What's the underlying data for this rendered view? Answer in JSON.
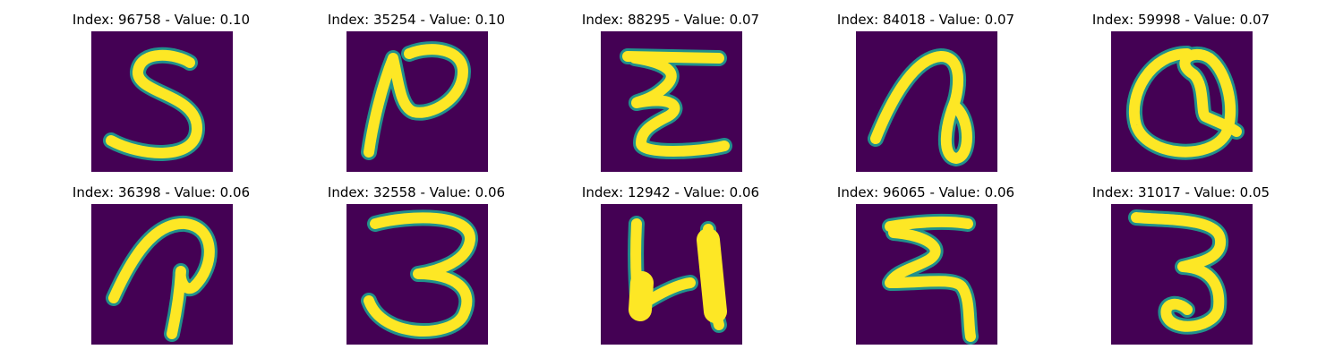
{
  "panels": [
    {
      "title": "Index: 96758 - Value: 0.10",
      "index": 96758,
      "value": 0.1,
      "glyph": "handwritten-s"
    },
    {
      "title": "Index: 35254 - Value: 0.10",
      "index": 35254,
      "value": 0.1,
      "glyph": "handwritten-n"
    },
    {
      "title": "Index: 88295 - Value: 0.07",
      "index": 88295,
      "value": 0.07,
      "glyph": "handwritten-e"
    },
    {
      "title": "Index: 84018 - Value: 0.07",
      "index": 84018,
      "value": 0.07,
      "glyph": "handwritten-loop-glyph"
    },
    {
      "title": "Index: 59998 - Value: 0.07",
      "index": 59998,
      "value": 0.07,
      "glyph": "handwritten-circle-glyph"
    },
    {
      "title": "Index: 36398 - Value: 0.06",
      "index": 36398,
      "value": 0.06,
      "glyph": "handwritten-p-glyph"
    },
    {
      "title": "Index: 32558 - Value: 0.06",
      "index": 32558,
      "value": 0.06,
      "glyph": "handwritten-3"
    },
    {
      "title": "Index: 12942 - Value: 0.06",
      "index": 12942,
      "value": 0.06,
      "glyph": "handwritten-4"
    },
    {
      "title": "Index: 96065 - Value: 0.06",
      "index": 96065,
      "value": 0.06,
      "glyph": "handwritten-hook-glyph"
    },
    {
      "title": "Index: 31017 - Value: 0.05",
      "index": 31017,
      "value": 0.05,
      "glyph": "handwritten-3"
    }
  ],
  "colors": {
    "background": "#440154",
    "stroke": "#fde725",
    "edge": "#21918c"
  }
}
